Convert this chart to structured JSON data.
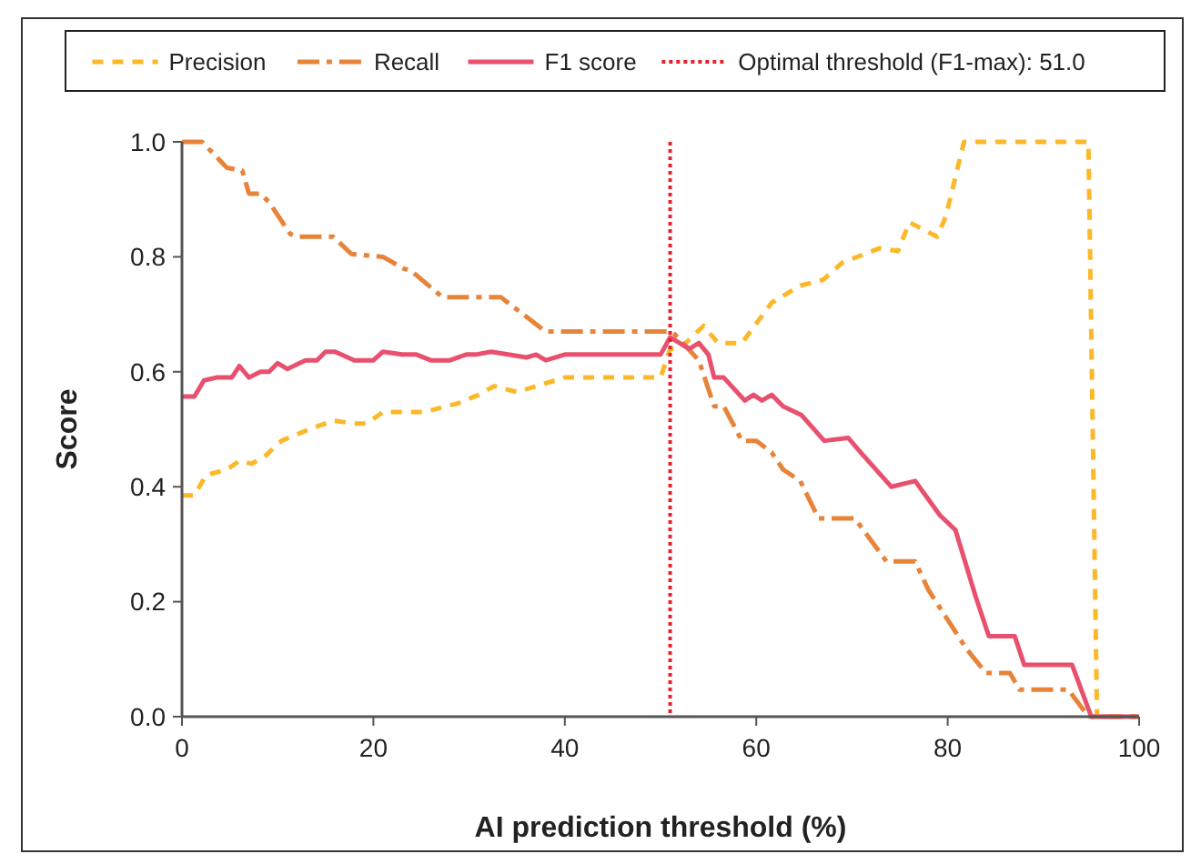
{
  "chart_data": {
    "type": "line",
    "xlabel": "AI prediction threshold (%)",
    "ylabel": "Score",
    "xlim": [
      0,
      100
    ],
    "ylim": [
      0,
      1.0
    ],
    "xticks": [
      0,
      20,
      40,
      60,
      80,
      100
    ],
    "yticks": [
      {
        "value": 0,
        "label": "0.0"
      },
      0.2,
      0.4,
      0.6,
      0.8,
      {
        "value": 1,
        "label": "1.0"
      }
    ],
    "grid": false,
    "legend": "top",
    "series": [
      {
        "name": "Precision",
        "color": "#fbb829",
        "line_style": "dashed",
        "x": [
          0,
          1.3,
          2.5,
          4.7,
          6,
          7.3,
          8.8,
          10.4,
          13.3,
          15.8,
          18,
          19.3,
          21,
          25.3,
          28.8,
          31,
          32.6,
          35,
          40,
          50,
          51,
          52,
          54.5,
          56,
          58.5,
          61.6,
          64.6,
          67,
          69,
          72.9,
          74.8,
          76,
          78.9,
          79.8,
          81.7,
          94.7,
          95.6,
          100
        ],
        "values": [
          0.385,
          0.385,
          0.42,
          0.43,
          0.445,
          0.44,
          0.455,
          0.48,
          0.5,
          0.515,
          0.51,
          0.51,
          0.53,
          0.53,
          0.545,
          0.56,
          0.575,
          0.565,
          0.59,
          0.59,
          0.64,
          0.64,
          0.68,
          0.65,
          0.65,
          0.72,
          0.75,
          0.76,
          0.79,
          0.815,
          0.81,
          0.86,
          0.835,
          0.87,
          1.0,
          1.0,
          0,
          0
        ]
      },
      {
        "name": "Recall",
        "color": "#e8833a",
        "line_style": "dashdot",
        "x": [
          0,
          2.1,
          4.7,
          6.3,
          7,
          8.2,
          9.1,
          11.3,
          12,
          15.8,
          17.7,
          21,
          23.1,
          24,
          27.2,
          33.3,
          38,
          51,
          51.5,
          54,
          55.6,
          56.6,
          58.5,
          60,
          61.6,
          62.8,
          64.6,
          66.5,
          70.3,
          73.6,
          76.6,
          78,
          82,
          84,
          86.5,
          87.5,
          92.6,
          94.7,
          100
        ],
        "values": [
          1.0,
          1.0,
          0.955,
          0.95,
          0.91,
          0.91,
          0.895,
          0.84,
          0.835,
          0.835,
          0.805,
          0.8,
          0.78,
          0.775,
          0.73,
          0.73,
          0.67,
          0.67,
          0.665,
          0.62,
          0.54,
          0.54,
          0.48,
          0.48,
          0.46,
          0.43,
          0.41,
          0.345,
          0.345,
          0.27,
          0.27,
          0.22,
          0.117,
          0.076,
          0.076,
          0.047,
          0.047,
          0,
          0
        ]
      },
      {
        "name": "F1 score",
        "color": "#e8506e",
        "line_style": "solid",
        "x": [
          0,
          1.3,
          2.3,
          3.6,
          5.2,
          6,
          7,
          8.2,
          9.1,
          10,
          11,
          12.9,
          14.1,
          15,
          16,
          18,
          20,
          21,
          23,
          24.5,
          26,
          28,
          29.7,
          30.7,
          32.3,
          36,
          37,
          38,
          40,
          50,
          51,
          53,
          54,
          55,
          55.6,
          56.6,
          58.8,
          59.7,
          60.6,
          61.6,
          62.8,
          64.7,
          67.1,
          69.6,
          70.9,
          74.1,
          76.6,
          79.2,
          80.8,
          82.9,
          84.3,
          87,
          88,
          93,
          95,
          100
        ],
        "values": [
          0.557,
          0.557,
          0.585,
          0.59,
          0.59,
          0.61,
          0.59,
          0.6,
          0.6,
          0.615,
          0.605,
          0.62,
          0.62,
          0.635,
          0.635,
          0.62,
          0.62,
          0.635,
          0.63,
          0.63,
          0.62,
          0.62,
          0.63,
          0.63,
          0.635,
          0.625,
          0.63,
          0.62,
          0.63,
          0.63,
          0.66,
          0.64,
          0.65,
          0.63,
          0.59,
          0.59,
          0.55,
          0.56,
          0.55,
          0.56,
          0.54,
          0.525,
          0.48,
          0.485,
          0.46,
          0.4,
          0.41,
          0.35,
          0.325,
          0.21,
          0.14,
          0.14,
          0.09,
          0.09,
          0,
          0
        ]
      }
    ],
    "ref_lines": [
      {
        "axis": "x",
        "value": 51,
        "label": "Optimal threshold (F1-max): 51.0",
        "color": "#e8212b",
        "line_style": "dotted"
      }
    ]
  }
}
